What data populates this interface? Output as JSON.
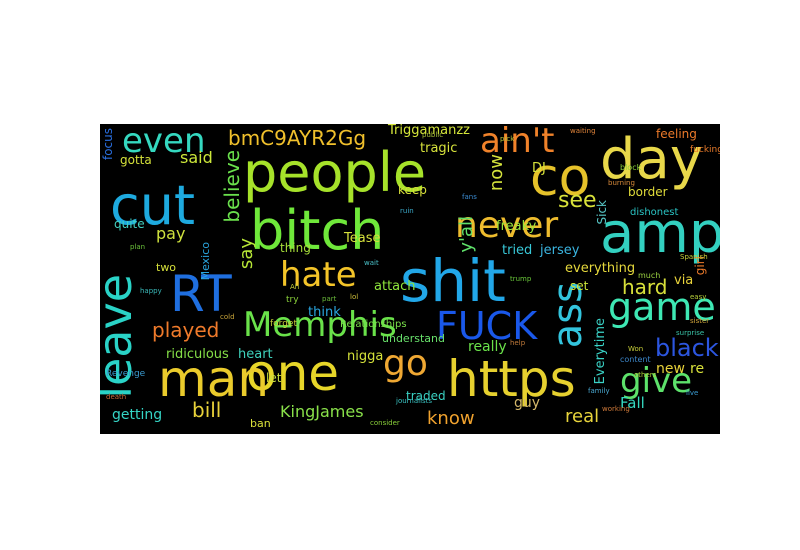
{
  "wordcloud": {
    "background": "#000000",
    "words": [
      {
        "text": "people",
        "color": "#a6e22a"
      },
      {
        "text": "day",
        "color": "#e8d84a"
      },
      {
        "text": "bitch",
        "color": "#6fe83a"
      },
      {
        "text": "amp",
        "color": "#33d0c0"
      },
      {
        "text": "co",
        "color": "#e6c22a"
      },
      {
        "text": "cut",
        "color": "#1eaadf"
      },
      {
        "text": "shit",
        "color": "#22a7e8"
      },
      {
        "text": "RT",
        "color": "#1f6fe0"
      },
      {
        "text": "leave",
        "color": "#2ad3c7"
      },
      {
        "text": "even",
        "color": "#35d8c0"
      },
      {
        "text": "ain't",
        "color": "#f0822a"
      },
      {
        "text": "never",
        "color": "#eebc2e"
      },
      {
        "text": "hate",
        "color": "#f3c429"
      },
      {
        "text": "game",
        "color": "#3ee8b4"
      },
      {
        "text": "Memphis",
        "color": "#6ae24a"
      },
      {
        "text": "FUCK",
        "color": "#1a58ea"
      },
      {
        "text": "one",
        "color": "#e7d629"
      },
      {
        "text": "man",
        "color": "#eacb2c"
      },
      {
        "text": "https",
        "color": "#e6d02f"
      },
      {
        "text": "ass",
        "color": "#33c5de"
      },
      {
        "text": "go",
        "color": "#efa833"
      },
      {
        "text": "give",
        "color": "#5de26b"
      },
      {
        "text": "bmC9AYR2Gg",
        "color": "#f0c02c"
      },
      {
        "text": "said",
        "color": "#cde83a"
      },
      {
        "text": "believe",
        "color": "#6ae04c"
      },
      {
        "text": "say",
        "color": "#b7e637"
      },
      {
        "text": "see",
        "color": "#d9e23a"
      },
      {
        "text": "hard",
        "color": "#d8e03a"
      },
      {
        "text": "black",
        "color": "#2c56e0"
      },
      {
        "text": "played",
        "color": "#ef7a2b"
      },
      {
        "text": "pay",
        "color": "#cfe23e"
      },
      {
        "text": "now",
        "color": "#d3e13c"
      },
      {
        "text": "y'all",
        "color": "#5fe06a"
      },
      {
        "text": "Triggamanzz",
        "color": "#d6e73a"
      },
      {
        "text": "bill",
        "color": "#e8d23a"
      },
      {
        "text": "KingJames",
        "color": "#8ae24a"
      },
      {
        "text": "know",
        "color": "#f0a22e"
      },
      {
        "text": "real",
        "color": "#e8d43c"
      },
      {
        "text": "getting",
        "color": "#35d5c6"
      },
      {
        "text": "ridiculous",
        "color": "#86e048"
      },
      {
        "text": "heart",
        "color": "#3fd2bc"
      },
      {
        "text": "nigga",
        "color": "#d5e23a"
      },
      {
        "text": "really",
        "color": "#6ae24a"
      },
      {
        "text": "Everytime",
        "color": "#3ad2c6"
      },
      {
        "text": "new",
        "color": "#e8d23a"
      },
      {
        "text": "re",
        "color": "#d9e23a"
      },
      {
        "text": "Fall",
        "color": "#35d8c0"
      },
      {
        "text": "guy",
        "color": "#d5b86a"
      },
      {
        "text": "traded",
        "color": "#3ad3c4"
      },
      {
        "text": "understand",
        "color": "#68e06b"
      },
      {
        "text": "Relationships",
        "color": "#7ae04a"
      },
      {
        "text": "think",
        "color": "#2aa6e0"
      },
      {
        "text": "attach",
        "color": "#8fe63c"
      },
      {
        "text": "set",
        "color": "#cde63a"
      },
      {
        "text": "everything",
        "color": "#e5d83c"
      },
      {
        "text": "via",
        "color": "#e8d23a"
      },
      {
        "text": "Tease",
        "color": "#d5e03c"
      },
      {
        "text": "thing",
        "color": "#a8e03a"
      },
      {
        "text": "keep",
        "color": "#d7e03a"
      },
      {
        "text": "freaky",
        "color": "#9ae63c"
      },
      {
        "text": "tried",
        "color": "#38c8d8"
      },
      {
        "text": "jersey",
        "color": "#3ab4e0"
      },
      {
        "text": "DJ",
        "color": "#d6e23a"
      },
      {
        "text": "tragic",
        "color": "#d8e43c"
      },
      {
        "text": "Sick",
        "color": "#58c8c8"
      },
      {
        "text": "border",
        "color": "#e0dc3a"
      },
      {
        "text": "feeling",
        "color": "#ec7a2a"
      },
      {
        "text": "focus",
        "color": "#2a6fe0"
      },
      {
        "text": "gotta",
        "color": "#d5e23a"
      },
      {
        "text": "quite",
        "color": "#43d0c0"
      },
      {
        "text": "two",
        "color": "#d5e03a"
      },
      {
        "text": "Mexico",
        "color": "#2aa6e0"
      },
      {
        "text": "let",
        "color": "#c9df42"
      },
      {
        "text": "ban",
        "color": "#d9e03a"
      },
      {
        "text": "girl",
        "color": "#ec7a2a"
      },
      {
        "text": "dishonest",
        "color": "#2ac4c4"
      },
      {
        "text": "fucking",
        "color": "#e87a2a"
      },
      {
        "text": "content",
        "color": "#3c86c8"
      },
      {
        "text": "much",
        "color": "#9ad040"
      },
      {
        "text": "block",
        "color": "#8ad03a"
      },
      {
        "text": "forget",
        "color": "#c8d03a"
      },
      {
        "text": "Revenge",
        "color": "#3a9ad0"
      },
      {
        "text": "death",
        "color": "#c86a3a"
      },
      {
        "text": "trump",
        "color": "#6ac83a"
      },
      {
        "text": "burning",
        "color": "#d88a3a"
      },
      {
        "text": "waiting",
        "color": "#e0843a"
      },
      {
        "text": "Spanish",
        "color": "#c8d03a"
      },
      {
        "text": "consider",
        "color": "#8ad03a"
      },
      {
        "text": "journalists",
        "color": "#3ac4c4"
      },
      {
        "text": "family",
        "color": "#4aa8d0"
      },
      {
        "text": "others",
        "color": "#aad03a"
      },
      {
        "text": "sister",
        "color": "#d0a43a"
      },
      {
        "text": "surprise",
        "color": "#3ac4a8"
      },
      {
        "text": "Won",
        "color": "#c8d03a"
      },
      {
        "text": "working",
        "color": "#d07a3a"
      },
      {
        "text": "live",
        "color": "#3a9ad0"
      },
      {
        "text": "easy",
        "color": "#b8d03a"
      },
      {
        "text": "public",
        "color": "#a8c03a"
      },
      {
        "text": "ruin",
        "color": "#3aa8c8"
      },
      {
        "text": "cold",
        "color": "#c8a43a"
      },
      {
        "text": "plan",
        "color": "#6ac03a"
      },
      {
        "text": "happy",
        "color": "#3ab8b8"
      },
      {
        "text": "lol",
        "color": "#d0c03a"
      },
      {
        "text": "wait",
        "color": "#4ac0c8"
      },
      {
        "text": "pick",
        "color": "#b8c83a"
      },
      {
        "text": "fans",
        "color": "#3a8ad0"
      },
      {
        "text": "help",
        "color": "#c07a3a"
      },
      {
        "text": "Ah",
        "color": "#c8d03a"
      },
      {
        "text": "try",
        "color": "#8ad03a"
      },
      {
        "text": "part",
        "color": "#6ab83a"
      }
    ]
  }
}
